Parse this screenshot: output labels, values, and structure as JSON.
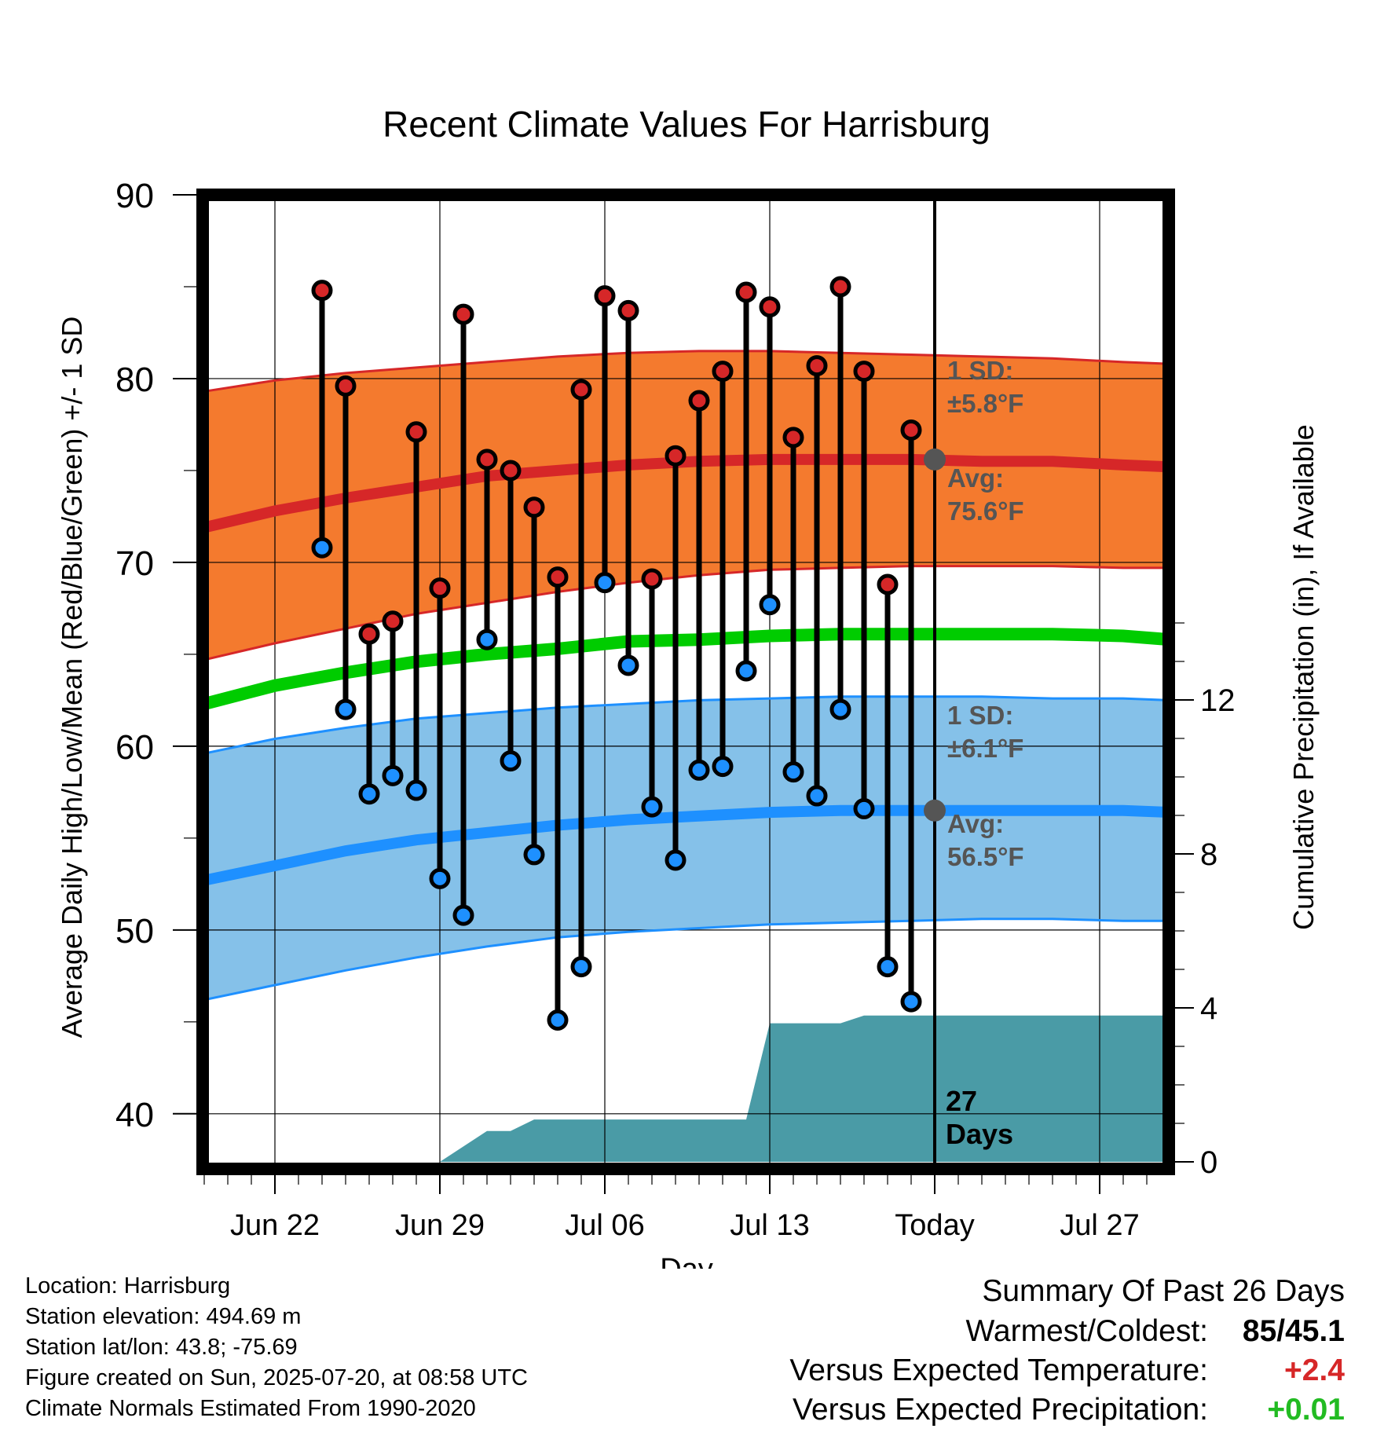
{
  "chart_data": {
    "type": "line",
    "title": "Recent Climate Values For Harrisburg",
    "xlabel": "Day",
    "ylabel": "Average Daily High/Low/Mean (Red/Blue/Green) +/- 1 SD",
    "y2label": "Cumulative Precipitation (in), If Available",
    "ylim": [
      37,
      90
    ],
    "y2lim": [
      0,
      27
    ],
    "yticks": [
      "40",
      "50",
      "60",
      "70",
      "80",
      "90"
    ],
    "y2ticks": [
      "0",
      "4",
      "8",
      "12"
    ],
    "x_dates": [
      "Jun 19",
      "Jun 20",
      "Jun 21",
      "Jun 22",
      "Jun 23",
      "Jun 24",
      "Jun 25",
      "Jun 26",
      "Jun 27",
      "Jun 28",
      "Jun 29",
      "Jun 30",
      "Jul 01",
      "Jul 02",
      "Jul 03",
      "Jul 04",
      "Jul 05",
      "Jul 06",
      "Jul 07",
      "Jul 08",
      "Jul 09",
      "Jul 10",
      "Jul 11",
      "Jul 12",
      "Jul 13",
      "Jul 14",
      "Jul 15",
      "Jul 16",
      "Jul 17",
      "Jul 18",
      "Jul 19",
      "Jul 20",
      "Jul 21",
      "Jul 22",
      "Jul 23",
      "Jul 24",
      "Jul 25",
      "Jul 26",
      "Jul 27",
      "Jul 28",
      "Jul 29",
      "Jul 30"
    ],
    "xticks": [
      {
        "date": "Jun 22",
        "label": "Jun 22"
      },
      {
        "date": "Jun 29",
        "label": "Jun 29"
      },
      {
        "date": "Jul 06",
        "label": "Jul 06"
      },
      {
        "date": "Jul 13",
        "label": "Jul 13"
      },
      {
        "date": "Jul 20",
        "label": "Today"
      },
      {
        "date": "Jul 27",
        "label": "Jul 27"
      }
    ],
    "today": "Jul 20",
    "days_label": "27\nDays",
    "observed": {
      "dates": [
        "Jun 24",
        "Jun 25",
        "Jun 26",
        "Jun 27",
        "Jun 28",
        "Jun 29",
        "Jun 30",
        "Jul 01",
        "Jul 02",
        "Jul 03",
        "Jul 04",
        "Jul 05",
        "Jul 06",
        "Jul 07",
        "Jul 08",
        "Jul 09",
        "Jul 10",
        "Jul 11",
        "Jul 12",
        "Jul 13",
        "Jul 14",
        "Jul 15",
        "Jul 16",
        "Jul 17",
        "Jul 18",
        "Jul 19"
      ],
      "high": [
        84.8,
        79.6,
        66.1,
        66.8,
        77.1,
        68.6,
        83.5,
        75.6,
        75.0,
        73.0,
        69.2,
        79.4,
        84.5,
        83.7,
        69.1,
        75.8,
        78.8,
        80.4,
        84.7,
        83.9,
        76.8,
        80.7,
        85.0,
        80.4,
        68.8,
        77.2
      ],
      "low": [
        70.8,
        62.0,
        57.4,
        58.4,
        57.6,
        52.8,
        50.8,
        65.8,
        59.2,
        54.1,
        45.1,
        48.0,
        68.9,
        64.4,
        56.7,
        53.8,
        58.7,
        58.9,
        64.1,
        67.7,
        58.6,
        57.3,
        62.0,
        56.6,
        48.0,
        46.1
      ]
    },
    "normals": {
      "dates": [
        "Jun 19",
        "Jun 22",
        "Jun 25",
        "Jun 28",
        "Jul 01",
        "Jul 04",
        "Jul 07",
        "Jul 10",
        "Jul 13",
        "Jul 16",
        "Jul 19",
        "Jul 22",
        "Jul 25",
        "Jul 28",
        "Jul 30"
      ],
      "high_avg": [
        71.9,
        72.8,
        73.5,
        74.1,
        74.7,
        75.0,
        75.3,
        75.5,
        75.6,
        75.6,
        75.6,
        75.5,
        75.5,
        75.3,
        75.2
      ],
      "low_avg": [
        52.7,
        53.5,
        54.3,
        54.9,
        55.3,
        55.7,
        56.0,
        56.2,
        56.4,
        56.5,
        56.5,
        56.5,
        56.5,
        56.5,
        56.4
      ],
      "mean": [
        62.3,
        63.3,
        64.0,
        64.6,
        65.0,
        65.3,
        65.7,
        65.8,
        66.0,
        66.1,
        66.1,
        66.1,
        66.1,
        66.0,
        65.8
      ],
      "high_sd_upper": [
        79.3,
        79.9,
        80.3,
        80.6,
        80.9,
        81.2,
        81.4,
        81.5,
        81.5,
        81.4,
        81.3,
        81.2,
        81.1,
        80.9,
        80.8
      ],
      "high_sd_lower": [
        64.7,
        65.6,
        66.4,
        67.2,
        67.8,
        68.4,
        68.9,
        69.3,
        69.6,
        69.7,
        69.8,
        69.8,
        69.8,
        69.7,
        69.7
      ],
      "low_sd_upper": [
        59.6,
        60.4,
        61.0,
        61.5,
        61.8,
        62.1,
        62.3,
        62.5,
        62.6,
        62.7,
        62.7,
        62.7,
        62.6,
        62.6,
        62.5
      ],
      "low_sd_lower": [
        46.2,
        47.0,
        47.8,
        48.5,
        49.1,
        49.6,
        49.9,
        50.1,
        50.3,
        50.4,
        50.5,
        50.6,
        50.6,
        50.5,
        50.5
      ]
    },
    "precip_cumulative": {
      "dates": [
        "Jun 29",
        "Jun 30",
        "Jul 01",
        "Jul 02",
        "Jul 03",
        "Jul 04",
        "Jul 05",
        "Jul 06",
        "Jul 07",
        "Jul 08",
        "Jul 09",
        "Jul 10",
        "Jul 11",
        "Jul 12",
        "Jul 13",
        "Jul 14",
        "Jul 15",
        "Jul 16",
        "Jul 17",
        "Jul 18",
        "Jul 19",
        "Jul 20",
        "Jul 30"
      ],
      "values": [
        0.0,
        0.4,
        0.8,
        0.8,
        1.1,
        1.1,
        1.1,
        1.1,
        1.1,
        1.1,
        1.1,
        1.1,
        1.1,
        1.1,
        3.6,
        3.6,
        3.6,
        3.6,
        3.8,
        3.8,
        3.8,
        3.8,
        3.8
      ]
    },
    "high_annotation": {
      "sd_label": "1 SD:",
      "sd_value": "±5.8°F",
      "avg_label": "Avg:",
      "avg_value": "75.6°F",
      "avg": 75.6
    },
    "low_annotation": {
      "sd_label": "1 SD:",
      "sd_value": "±6.1°F",
      "avg_label": "Avg:",
      "avg_value": "56.5°F",
      "avg": 56.5
    },
    "colors": {
      "high_band": "#f47a2e",
      "high_line": "#d62728",
      "low_band": "#85c1e9",
      "low_line": "#1e90ff",
      "mean_line": "#00cc00",
      "precip": "#4a9ba6",
      "high_marker": "#d62728",
      "low_marker": "#1e90ff",
      "annotation_text": "#555555"
    }
  },
  "info": {
    "location": "Location: Harrisburg",
    "elevation": "Station elevation: 494.69 m",
    "latlon": "Station lat/lon: 43.8; -75.69",
    "created": "Figure created on Sun, 2025-07-20, at 08:58 UTC",
    "normals": "Climate Normals Estimated From 1990-2020"
  },
  "summary": {
    "heading": "Summary Of Past 26 Days",
    "warmest_label": "Warmest/Coldest:",
    "warmest_value": "85/45.1",
    "temp_label": "Versus Expected Temperature:",
    "temp_value": "+2.4",
    "temp_color": "#d62728",
    "precip_label": "Versus Expected Precipitation:",
    "precip_value": "+0.01",
    "precip_color": "#22bb22"
  }
}
